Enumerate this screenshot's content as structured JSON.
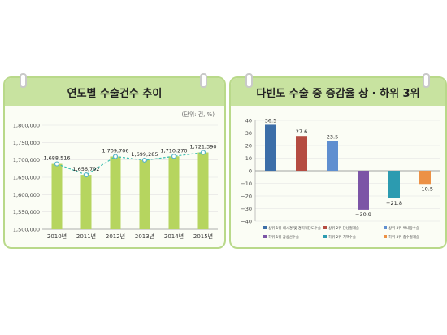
{
  "left": {
    "title": "연도별 수술건수 추이",
    "unit": "(단위: 건, %)"
  },
  "right": {
    "title": "다빈도 수술 중 증감율 상 · 하위 3위"
  },
  "chart_data": [
    {
      "type": "bar",
      "title": "연도별 수술건수 추이",
      "categories": [
        "2010년",
        "2011년",
        "2012년",
        "2013년",
        "2014년",
        "2015년"
      ],
      "values": [
        1688516,
        1656792,
        1709706,
        1699285,
        1710270,
        1721390
      ],
      "labels": [
        "1,688,516",
        "1,656,792",
        "1,709,706",
        "1,699,285",
        "1,710,270",
        "1,721,390"
      ],
      "yticks": [
        "1,800,000",
        "1,750,000",
        "1,700,000",
        "1,650,000",
        "1,600,000",
        "1,550,000",
        "1,500,000"
      ],
      "ylim": [
        1500000,
        1800000
      ],
      "overlay": "line",
      "colors": {
        "bar": "#b6d55f",
        "line": "#3dbfb0",
        "point": "#5ab6c8"
      }
    },
    {
      "type": "bar",
      "title": "다빈도 수술 중 증감율 상 · 하위 3위",
      "values": [
        36.5,
        27.6,
        23.5,
        -30.9,
        -21.8,
        -10.5
      ],
      "labels": [
        "36.5",
        "27.6",
        "23.5",
        "−30.9",
        "−21.8",
        "−10.5"
      ],
      "yticks": [
        "40",
        "30",
        "20",
        "10",
        "0",
        "−10",
        "−20",
        "−30",
        "−40"
      ],
      "ylim": [
        -40,
        40
      ],
      "colors": [
        "#3c6ea8",
        "#b54c41",
        "#5f8fd0",
        "#7c55a6",
        "#2c9bb0",
        "#ec9145"
      ],
      "legend": [
        {
          "label": "상위 1위 내시경 및 경피적담도수술",
          "color": "#3c6ea8"
        },
        {
          "label": "상위 2위 담낭절제술",
          "color": "#b54c41"
        },
        {
          "label": "상위 3위 백내장수술",
          "color": "#5f8fd0"
        },
        {
          "label": "하위 1위 갑상선수술",
          "color": "#7c55a6"
        },
        {
          "label": "하위 2위 치핵수술",
          "color": "#2c9bb0"
        },
        {
          "label": "하위 3위 충수절제술",
          "color": "#ec9145"
        }
      ]
    }
  ]
}
